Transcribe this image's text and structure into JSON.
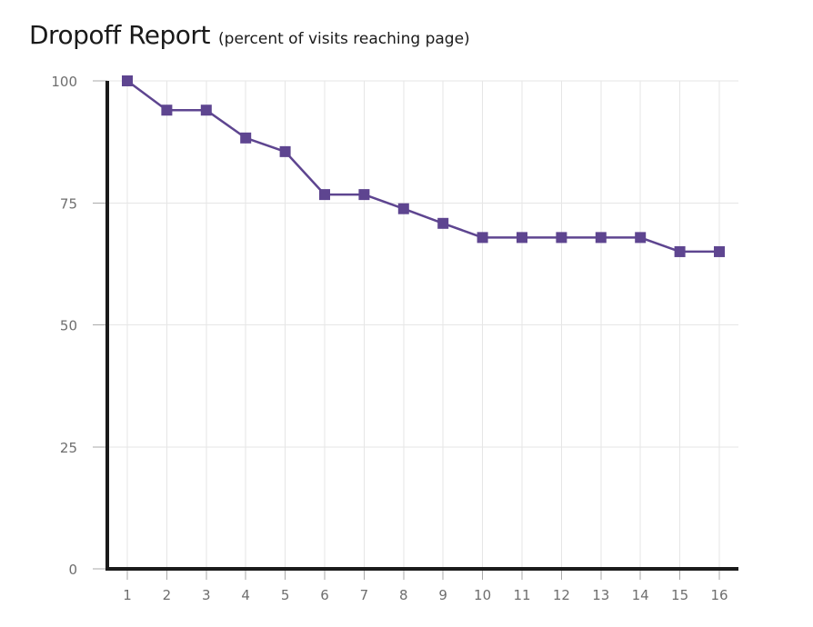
{
  "chart_data": {
    "type": "line",
    "title": "Dropoff Report",
    "subtitle": "(percent of visits reaching page)",
    "xlabel": "",
    "ylabel": "",
    "x": [
      "1",
      "2",
      "3",
      "4",
      "5",
      "6",
      "7",
      "8",
      "9",
      "10",
      "11",
      "12",
      "13",
      "14",
      "15",
      "16"
    ],
    "series": [
      {
        "name": "percent of visits reaching page",
        "color": "#5e4590",
        "values": [
          100,
          94,
          94,
          88.3,
          85.5,
          76.7,
          76.7,
          73.8,
          70.8,
          67.9,
          67.9,
          67.9,
          67.9,
          67.9,
          65,
          65
        ]
      }
    ],
    "ylim": [
      0,
      100
    ],
    "yticks": [
      "0",
      "25",
      "50",
      "75",
      "100"
    ],
    "grid": true,
    "marker": "square"
  }
}
